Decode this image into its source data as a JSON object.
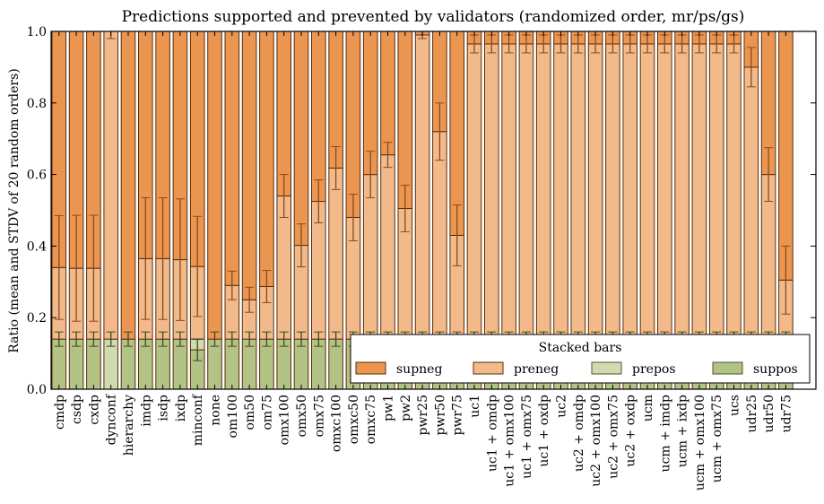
{
  "chart_data": {
    "type": "bar",
    "stacked": true,
    "title": "Predictions supported and prevented by validators (randomized order, mr/ps/gs)",
    "xlabel": "",
    "ylabel": "Ratio (mean and STDV of 20 random orders)",
    "ylim": [
      0.0,
      1.0
    ],
    "yticks": [
      "0.0",
      "0.2",
      "0.4",
      "0.6",
      "0.8",
      "1.0"
    ],
    "grid": false,
    "categories": [
      "cmdp",
      "csdp",
      "cxdp",
      "dynconf",
      "hierarchy",
      "imdp",
      "isdp",
      "ixdp",
      "minconf",
      "none",
      "om100",
      "om50",
      "om75",
      "omx100",
      "omx50",
      "omx75",
      "omxc100",
      "omxc50",
      "omxc75",
      "pw1",
      "pw2",
      "pwr25",
      "pwr50",
      "pwr75",
      "uc1",
      "uc1 + omdp",
      "uc1 + omx100",
      "uc1 + omx75",
      "uc1 + oxdp",
      "uc2",
      "uc2 + omdp",
      "uc2 + omx100",
      "uc2 + omx75",
      "uc2 + oxdp",
      "ucm",
      "ucm + imdp",
      "ucm + ixdp",
      "ucm + omx100",
      "ucm + omx75",
      "ucs",
      "udr25",
      "udr50",
      "udr75"
    ],
    "legend": {
      "title": "Stacked bars",
      "placement": "lower-right",
      "entries": [
        {
          "name": "supneg",
          "color": "#eb9650"
        },
        {
          "name": "preneg",
          "color": "#f2b98b"
        },
        {
          "name": "prepos",
          "color": "#d0dbb0"
        },
        {
          "name": "suppos",
          "color": "#b3c285"
        }
      ]
    },
    "series": [
      {
        "name": "suppos",
        "color": "#b3c285",
        "values": [
          0.14,
          0.14,
          0.14,
          0.0,
          0.14,
          0.14,
          0.14,
          0.14,
          0.11,
          0.14,
          0.14,
          0.14,
          0.14,
          0.14,
          0.14,
          0.14,
          0.14,
          0.14,
          0.14,
          0.14,
          0.14,
          0.14,
          0.14,
          0.14,
          0.14,
          0.14,
          0.14,
          0.14,
          0.14,
          0.14,
          0.14,
          0.14,
          0.14,
          0.14,
          0.14,
          0.14,
          0.14,
          0.14,
          0.14,
          0.14,
          0.14,
          0.14,
          0.14
        ],
        "err": [
          0.02,
          0.02,
          0.02,
          0.0,
          0.02,
          0.02,
          0.02,
          0.02,
          0.03,
          0.02,
          0.02,
          0.02,
          0.02,
          0.02,
          0.02,
          0.02,
          0.02,
          0.02,
          0.02,
          0.02,
          0.02,
          0.02,
          0.02,
          0.02,
          0.02,
          0.02,
          0.02,
          0.02,
          0.02,
          0.02,
          0.02,
          0.02,
          0.02,
          0.02,
          0.02,
          0.02,
          0.02,
          0.02,
          0.02,
          0.02,
          0.02,
          0.02,
          0.02
        ]
      },
      {
        "name": "prepos",
        "color": "#d0dbb0",
        "values": [
          0.0,
          0.0,
          0.0,
          0.14,
          0.0,
          0.0,
          0.0,
          0.0,
          0.03,
          0.0,
          0.0,
          0.0,
          0.0,
          0.0,
          0.0,
          0.0,
          0.0,
          0.0,
          0.0,
          0.0,
          0.0,
          0.0,
          0.0,
          0.0,
          0.0,
          0.0,
          0.0,
          0.0,
          0.0,
          0.0,
          0.0,
          0.0,
          0.0,
          0.0,
          0.0,
          0.0,
          0.0,
          0.0,
          0.0,
          0.0,
          0.0,
          0.0,
          0.0
        ],
        "err": [
          0.0,
          0.0,
          0.0,
          0.02,
          0.0,
          0.0,
          0.0,
          0.0,
          0.0,
          0.0,
          0.0,
          0.0,
          0.0,
          0.0,
          0.0,
          0.0,
          0.0,
          0.0,
          0.0,
          0.0,
          0.0,
          0.0,
          0.0,
          0.0,
          0.0,
          0.0,
          0.0,
          0.0,
          0.0,
          0.0,
          0.0,
          0.0,
          0.0,
          0.0,
          0.0,
          0.0,
          0.0,
          0.0,
          0.0,
          0.0,
          0.0,
          0.0,
          0.0
        ]
      },
      {
        "name": "preneg",
        "color": "#f2b98b",
        "values": [
          0.2,
          0.198,
          0.198,
          0.86,
          0.0,
          0.225,
          0.225,
          0.222,
          0.203,
          0.0,
          0.15,
          0.11,
          0.147,
          0.4,
          0.262,
          0.385,
          0.478,
          0.34,
          0.46,
          0.515,
          0.365,
          0.85,
          0.58,
          0.29,
          0.825,
          0.825,
          0.825,
          0.825,
          0.825,
          0.825,
          0.825,
          0.825,
          0.825,
          0.825,
          0.825,
          0.825,
          0.825,
          0.825,
          0.825,
          0.825,
          0.76,
          0.46,
          0.165
        ],
        "err": [
          0.145,
          0.148,
          0.148,
          0.02,
          0.0,
          0.17,
          0.17,
          0.17,
          0.14,
          0.0,
          0.04,
          0.035,
          0.045,
          0.06,
          0.06,
          0.06,
          0.06,
          0.065,
          0.065,
          0.035,
          0.065,
          0.01,
          0.08,
          0.085,
          0.025,
          0.025,
          0.025,
          0.025,
          0.025,
          0.025,
          0.025,
          0.025,
          0.025,
          0.025,
          0.025,
          0.025,
          0.025,
          0.025,
          0.025,
          0.025,
          0.055,
          0.075,
          0.095
        ]
      },
      {
        "name": "supneg",
        "color": "#eb9650",
        "values": [
          0.66,
          0.662,
          0.662,
          0.0,
          0.86,
          0.635,
          0.635,
          0.638,
          0.657,
          0.86,
          0.71,
          0.75,
          0.713,
          0.46,
          0.598,
          0.475,
          0.382,
          0.52,
          0.4,
          0.345,
          0.495,
          0.01,
          0.28,
          0.57,
          0.035,
          0.035,
          0.035,
          0.035,
          0.035,
          0.035,
          0.035,
          0.035,
          0.035,
          0.035,
          0.035,
          0.035,
          0.035,
          0.035,
          0.035,
          0.035,
          0.1,
          0.4,
          0.695
        ],
        "err": [
          0.0,
          0.0,
          0.0,
          0.0,
          0.0,
          0.0,
          0.0,
          0.0,
          0.0,
          0.0,
          0.0,
          0.0,
          0.0,
          0.0,
          0.0,
          0.0,
          0.0,
          0.0,
          0.0,
          0.0,
          0.0,
          0.0,
          0.0,
          0.0,
          0.0,
          0.0,
          0.0,
          0.0,
          0.0,
          0.0,
          0.0,
          0.0,
          0.0,
          0.0,
          0.0,
          0.0,
          0.0,
          0.0,
          0.0,
          0.0,
          0.0,
          0.0,
          0.0
        ]
      }
    ],
    "xlim_slots": 45
  }
}
